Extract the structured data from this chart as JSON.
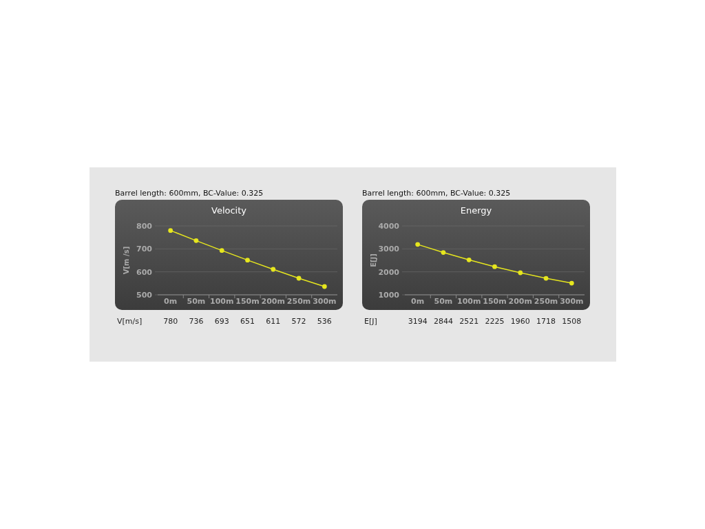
{
  "chart_data": [
    {
      "type": "line",
      "subtitle": "Barrel length: 600mm, BC-Value: 0.325",
      "title": "Velocity",
      "ylabel": "V[m /s]",
      "categories": [
        "0m",
        "50m",
        "100m",
        "150m",
        "200m",
        "250m",
        "300m"
      ],
      "series": [
        {
          "name": "V[m/s]",
          "color": "#e6e61e",
          "values": [
            780,
            736,
            693,
            651,
            611,
            572,
            536
          ]
        }
      ],
      "ylim": [
        500,
        800
      ],
      "yticks": [
        500,
        600,
        700,
        800
      ],
      "grid": "y",
      "marker": "circle",
      "data_labels": true
    },
    {
      "type": "line",
      "subtitle": "Barrel length: 600mm, BC-Value: 0.325",
      "title": "Energy",
      "ylabel": "E[J]",
      "categories": [
        "0m",
        "50m",
        "100m",
        "150m",
        "200m",
        "250m",
        "300m"
      ],
      "series": [
        {
          "name": "E[J]",
          "color": "#e6e61e",
          "values": [
            3194,
            2844,
            2521,
            2225,
            1960,
            1718,
            1508
          ]
        }
      ],
      "ylim": [
        1000,
        4000
      ],
      "yticks": [
        1000,
        2000,
        3000,
        4000
      ],
      "grid": "y",
      "marker": "circle",
      "data_labels": true
    }
  ]
}
